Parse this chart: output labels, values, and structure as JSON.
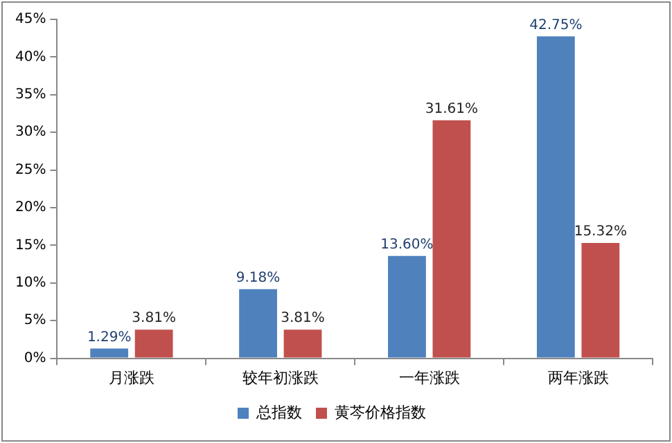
{
  "chart_data": {
    "type": "bar",
    "categories": [
      "月涨跌",
      "较年初涨跌",
      "一年涨跌",
      "两年涨跌"
    ],
    "series": [
      {
        "name": "总指数",
        "color": "#4f81bd",
        "values": [
          1.29,
          9.18,
          13.6,
          42.75
        ],
        "value_labels": [
          "1.29%",
          "9.18%",
          "13.60%",
          "42.75%"
        ]
      },
      {
        "name": "黄芩价格指数",
        "color": "#c0504d",
        "values": [
          3.81,
          3.81,
          31.61,
          15.32
        ],
        "value_labels": [
          "3.81%",
          "3.81%",
          "31.61%",
          "15.32%"
        ]
      }
    ],
    "ylim": [
      0,
      45
    ],
    "yticks": [
      {
        "value": 0,
        "label": "0%"
      },
      {
        "value": 5,
        "label": "5%"
      },
      {
        "value": 10,
        "label": "10%"
      },
      {
        "value": 15,
        "label": "15%"
      },
      {
        "value": 20,
        "label": "20%"
      },
      {
        "value": 25,
        "label": "25%"
      },
      {
        "value": 30,
        "label": "30%"
      },
      {
        "value": 35,
        "label": "35%"
      },
      {
        "value": 40,
        "label": "40%"
      },
      {
        "value": 45,
        "label": "45%"
      }
    ],
    "grid": false,
    "legend": "bottom"
  }
}
